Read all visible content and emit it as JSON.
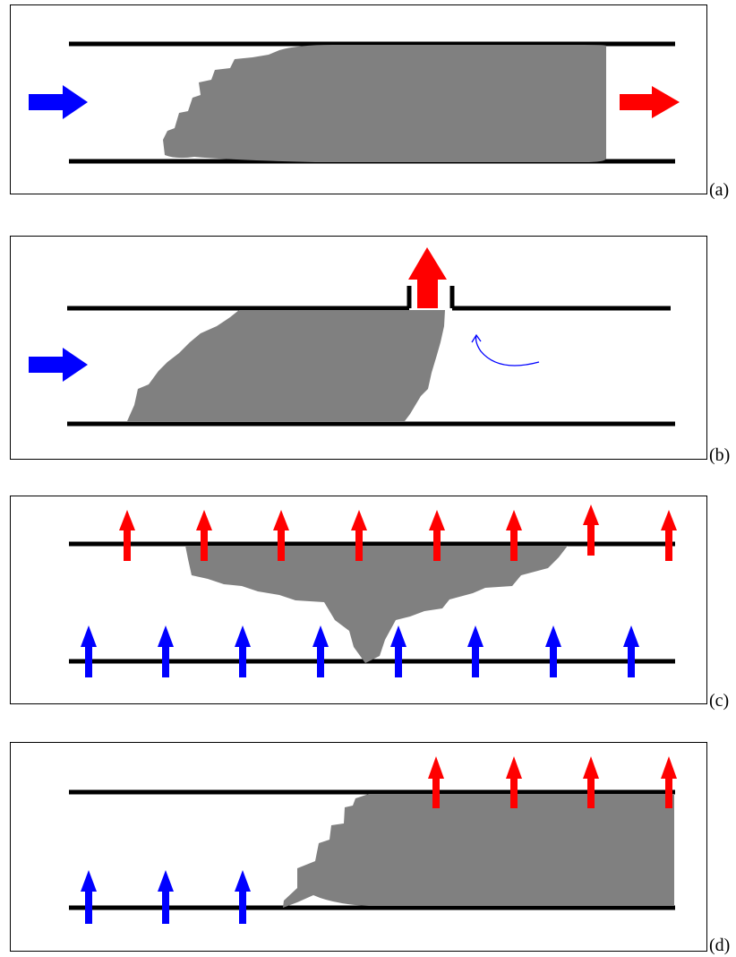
{
  "panels": [
    {
      "id": "a",
      "label": "(a)"
    },
    {
      "id": "b",
      "label": "(b)"
    },
    {
      "id": "c",
      "label": "(c)"
    },
    {
      "id": "d",
      "label": "(d)"
    }
  ],
  "colors": {
    "inflow": "#0000ff",
    "outflow": "#ff0000",
    "fill": "#808080",
    "wall": "#000000",
    "frame": "#000000"
  },
  "icons": {
    "inflow": "arrow-right-icon",
    "outflow": "arrow-right-icon",
    "outflow_up": "arrow-up-icon",
    "inflow_up": "arrow-up-icon",
    "swirl": "curved-arrow-icon"
  }
}
